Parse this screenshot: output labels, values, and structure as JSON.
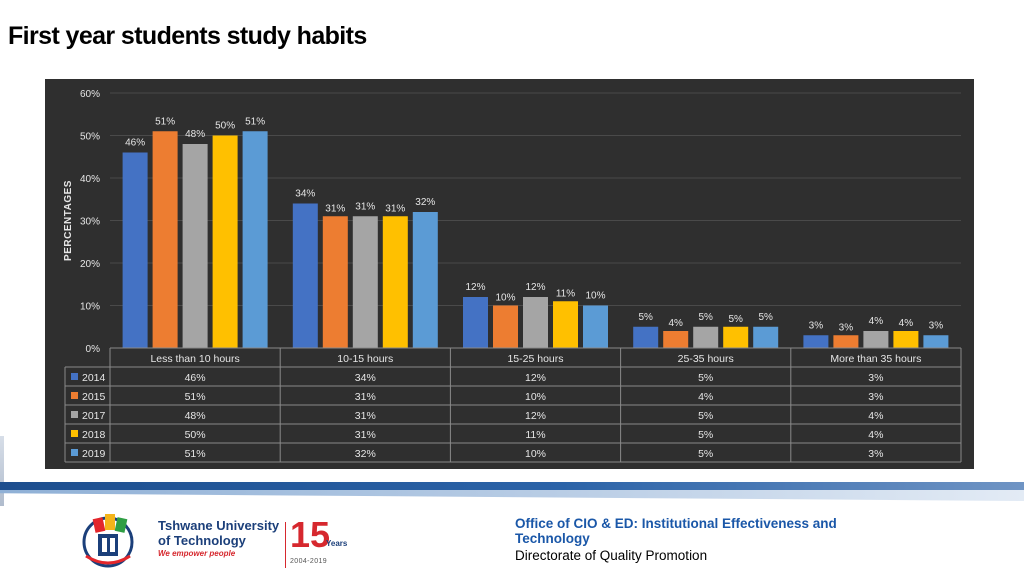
{
  "slide": {
    "title": "First year students study habits"
  },
  "chart_data": {
    "type": "bar",
    "title": "",
    "xlabel": "",
    "ylabel": "PERCENTAGES",
    "ylim": [
      0,
      60
    ],
    "yticks": [
      "0%",
      "10%",
      "20%",
      "30%",
      "40%",
      "50%",
      "60%"
    ],
    "grid": true,
    "legend": "data-table",
    "categories": [
      "Less than 10 hours",
      "10-15 hours",
      "15-25 hours",
      "25-35 hours",
      "More than 35 hours"
    ],
    "series": [
      {
        "name": "2014",
        "color": "#4472c4",
        "values": [
          46,
          34,
          12,
          5,
          3
        ],
        "labels": [
          "46%",
          "34%",
          "12%",
          "5%",
          "3%"
        ]
      },
      {
        "name": "2015",
        "color": "#ed7d31",
        "values": [
          51,
          31,
          10,
          4,
          3
        ],
        "labels": [
          "51%",
          "31%",
          "10%",
          "4%",
          "3%"
        ]
      },
      {
        "name": "2017",
        "color": "#a5a5a5",
        "values": [
          48,
          31,
          12,
          5,
          4
        ],
        "labels": [
          "48%",
          "31%",
          "12%",
          "5%",
          "4%"
        ]
      },
      {
        "name": "2018",
        "color": "#ffc000",
        "values": [
          50,
          31,
          11,
          5,
          4
        ],
        "labels": [
          "50%",
          "31%",
          "11%",
          "5%",
          "4%"
        ]
      },
      {
        "name": "2019",
        "color": "#5b9bd5",
        "values": [
          51,
          32,
          10,
          5,
          3
        ],
        "labels": [
          "51%",
          "32%",
          "10%",
          "5%",
          "3%"
        ]
      }
    ]
  },
  "footer": {
    "logo_line1": "Tshwane University",
    "logo_line2": "of Technology",
    "tagline": "We empower people",
    "anniversary_number": "15",
    "anniversary_suffix": "Years",
    "anniversary_span": "2004-2019",
    "office": "Office of CIO & ED: Institutional  Effectiveness and Technology",
    "directorate": "Directorate of Quality Promotion"
  }
}
